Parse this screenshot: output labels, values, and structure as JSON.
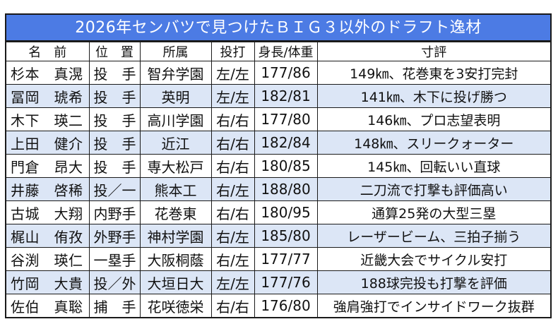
{
  "title": "2026年センバツで見つけたＢＩＧ３以外のドラフト逸材",
  "colors": {
    "title_bg": "#4c7be4",
    "alt_row_bg": "#dce6f6",
    "border": "#1a1a1a"
  },
  "headers": [
    "名　前",
    "位　置",
    "所属",
    "投打",
    "身長/体重",
    "寸評"
  ],
  "rows": [
    [
      "杉本　真滉",
      "投　手",
      "智弁学園",
      "左/左",
      "177/86",
      "149㎞、花巻東を3安打完封"
    ],
    [
      "冨岡　琥希",
      "投　手",
      "英明",
      "左/左",
      "182/81",
      "141㎞、木下に投げ勝つ"
    ],
    [
      "木下　瑛二",
      "投　手",
      "高川学園",
      "右/右",
      "177/80",
      "146㎞、プロ志望表明"
    ],
    [
      "上田　健介",
      "投　手",
      "近江",
      "右/右",
      "182/84",
      "148㎞、スリークォーター"
    ],
    [
      "門倉　昂大",
      "投　手",
      "専大松戸",
      "右/右",
      "180/85",
      "145㎞、回転いい直球"
    ],
    [
      "井藤　啓稀",
      "投／一",
      "熊本工",
      "右/左",
      "188/80",
      "二刀流で打撃も評価高い"
    ],
    [
      "古城　大翔",
      "内野手",
      "花巻東",
      "右/右",
      "180/95",
      "通算25発の大型三塁"
    ],
    [
      "梶山　侑孜",
      "外野手",
      "神村学園",
      "右/左",
      "185/80",
      "レーザービーム、三拍子揃う"
    ],
    [
      "谷渕　瑛仁",
      "一塁手",
      "大阪桐蔭",
      "右/左",
      "177/77",
      "近畿大会でサイクル安打"
    ],
    [
      "竹岡　大貴",
      "投／外",
      "大垣日大",
      "左/左",
      "177/76",
      "188球完投も打撃を評価"
    ],
    [
      "佐伯　真聡",
      "捕　手",
      "花咲徳栄",
      "右/右",
      "176/80",
      "強肩強打でインサイドワーク抜群"
    ]
  ]
}
